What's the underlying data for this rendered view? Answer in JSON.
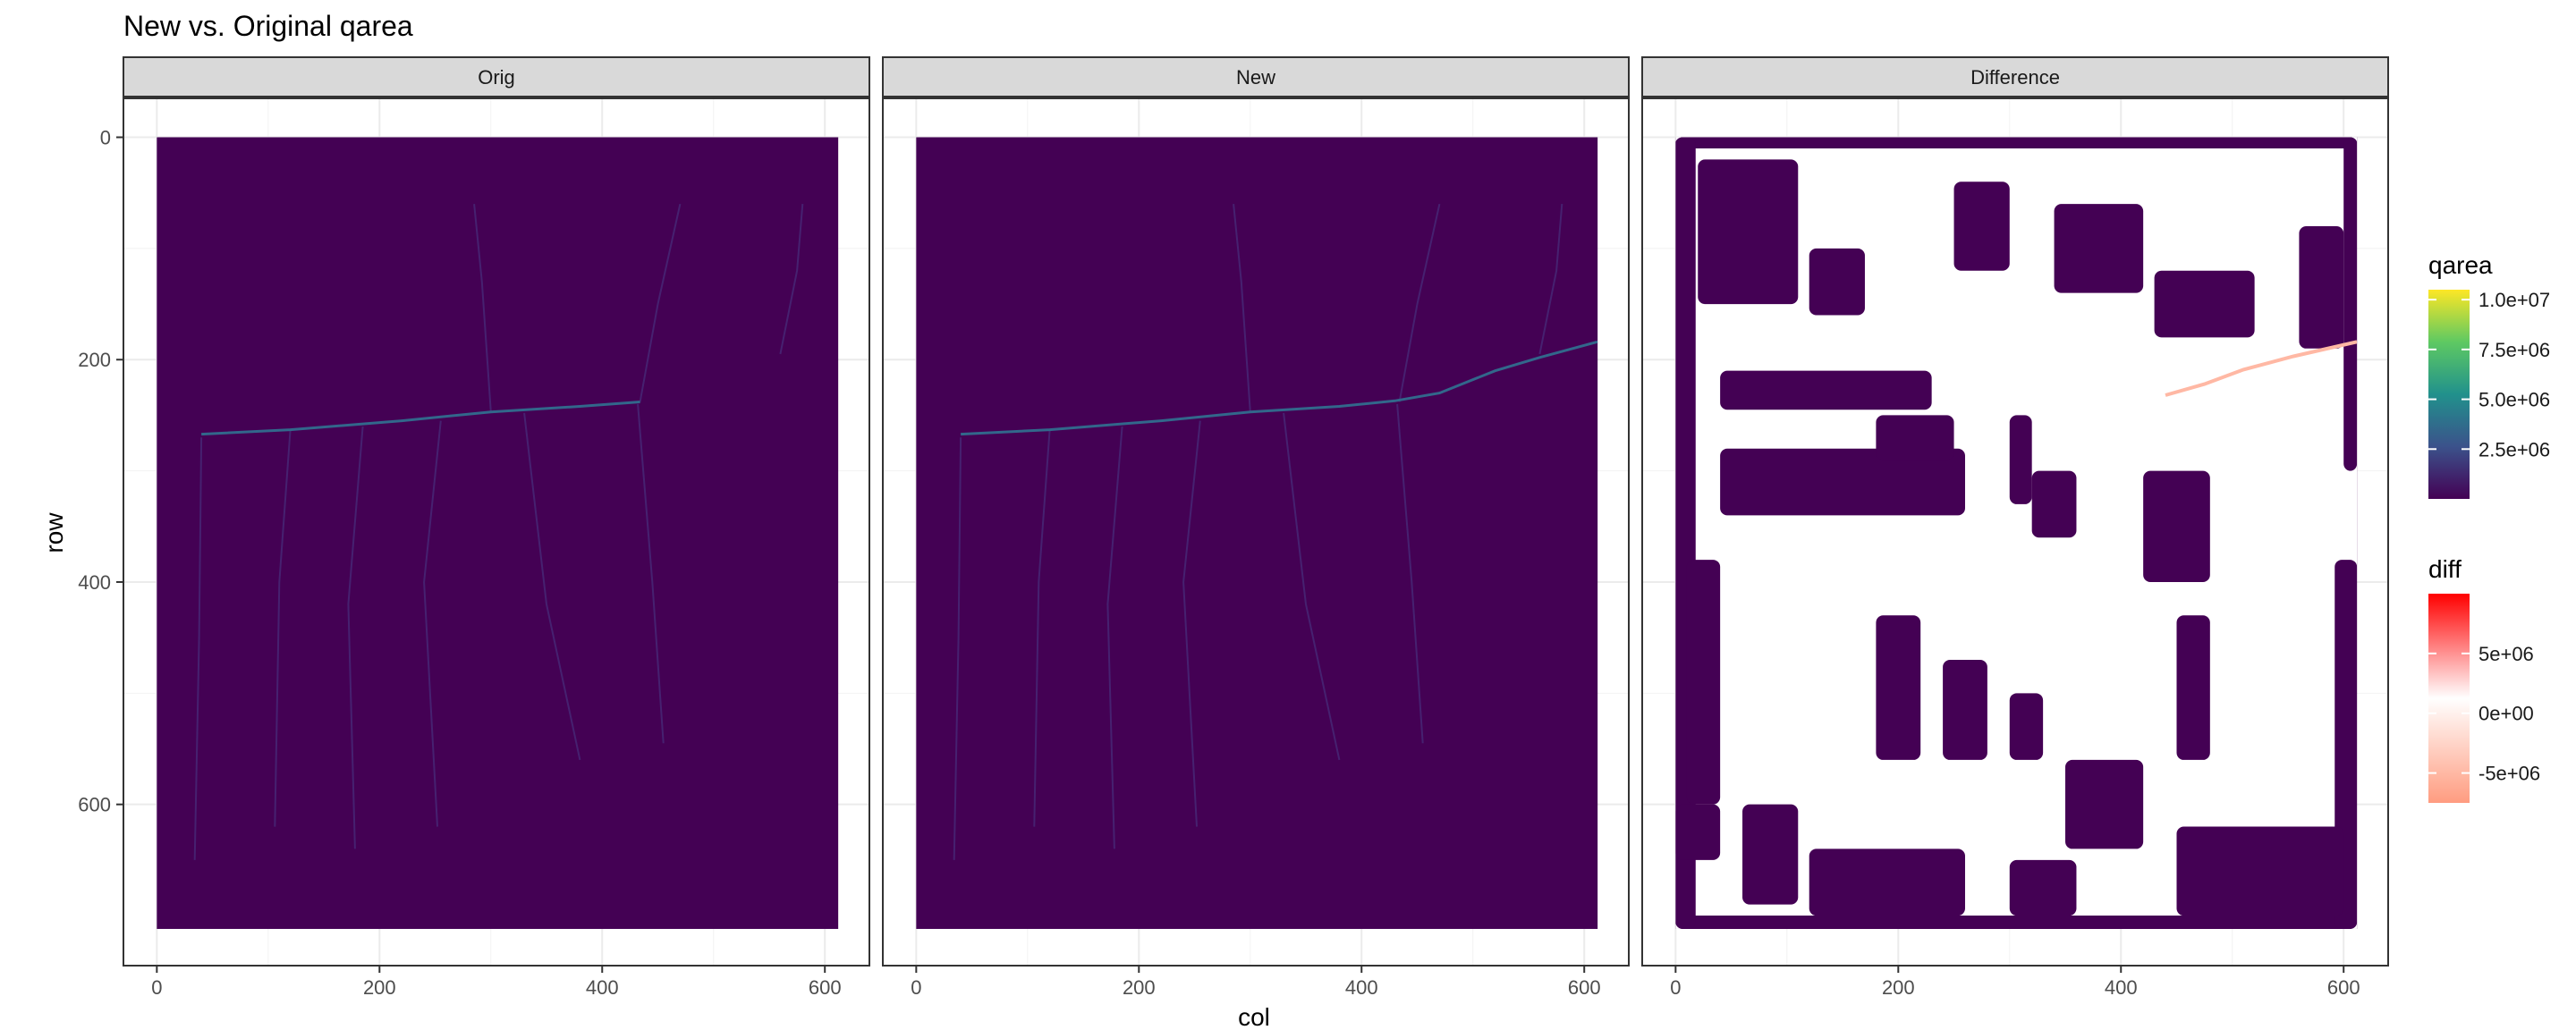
{
  "chart_data": {
    "type": "heatmap",
    "title": "New vs. Original qarea",
    "xlabel": "col",
    "ylabel": "row",
    "xlim": [
      -30,
      640
    ],
    "ylim": [
      745,
      -35
    ],
    "x_ticks": [
      0,
      200,
      400,
      600
    ],
    "y_ticks": [
      0,
      200,
      400,
      600
    ],
    "grid": true,
    "raster_extent": {
      "col": [
        0,
        612
      ],
      "row": [
        0,
        712
      ]
    },
    "background_fill": "#440154",
    "facets": [
      {
        "label": "Orig",
        "scale": "qarea"
      },
      {
        "label": "New",
        "scale": "qarea"
      },
      {
        "label": "Difference",
        "scale": "diff"
      }
    ],
    "main_channel": {
      "Orig": [
        [
          40,
          267
        ],
        [
          120,
          263
        ],
        [
          220,
          255
        ],
        [
          300,
          247
        ],
        [
          380,
          242
        ],
        [
          434,
          238
        ]
      ],
      "New": [
        [
          40,
          267
        ],
        [
          120,
          263
        ],
        [
          220,
          255
        ],
        [
          300,
          247
        ],
        [
          380,
          242
        ],
        [
          430,
          237
        ],
        [
          470,
          230
        ],
        [
          520,
          210
        ],
        [
          560,
          198
        ],
        [
          612,
          184
        ]
      ],
      "qarea_level": 3500000
    },
    "difference_channel": {
      "points": [
        [
          440,
          232
        ],
        [
          475,
          222
        ],
        [
          510,
          209
        ],
        [
          555,
          197
        ],
        [
          612,
          184
        ]
      ],
      "diff_level": -5000000
    },
    "legends": [
      {
        "title": "qarea",
        "type": "gradient",
        "range": [
          0,
          10500000
        ],
        "breaks": [
          2500000,
          5000000,
          7500000,
          10000000
        ],
        "labels": [
          "2.5e+06",
          "5.0e+06",
          "7.5e+06",
          "1.0e+07"
        ],
        "colors": [
          "#440154",
          "#3b528b",
          "#21918c",
          "#5ec962",
          "#fde725"
        ]
      },
      {
        "title": "diff",
        "type": "gradient",
        "range": [
          -7500000,
          10000000
        ],
        "breaks": [
          -5000000,
          0,
          5000000
        ],
        "labels": [
          "-5e+06",
          "0e+00",
          "5e+06"
        ],
        "colors": [
          "#ff9c80",
          "#ffffff",
          "#ff0000"
        ]
      }
    ]
  }
}
